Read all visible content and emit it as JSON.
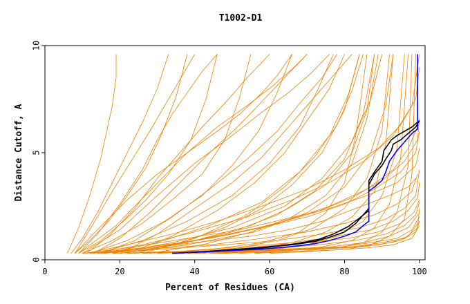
{
  "chart_data": {
    "type": "line",
    "title": "T1002-D1",
    "xlabel": "Percent of Residues (CA)",
    "ylabel": "Distance Cutoff, A",
    "xlim": [
      0,
      101.5
    ],
    "ylim": [
      0,
      10
    ],
    "x_ticks": [
      0,
      20,
      40,
      60,
      80,
      100
    ],
    "y_ticks": [
      0,
      5,
      10
    ],
    "grid": false,
    "legend": "none",
    "colors": {
      "background_models": "#f08000",
      "highlight_black": "#000000",
      "highlight_blue": "#0000ff",
      "frame": "#000000"
    },
    "background_series": [
      {
        "x": [
          6,
          9,
          12,
          15,
          17,
          18,
          19,
          19
        ],
        "y": [
          0.3,
          1.5,
          3,
          4.8,
          6.4,
          7.2,
          8.5,
          9.6
        ]
      },
      {
        "x": [
          7,
          10,
          14,
          18,
          22,
          26,
          30,
          33
        ],
        "y": [
          0.3,
          1,
          2.2,
          3.6,
          5,
          6.4,
          8,
          9.6
        ]
      },
      {
        "x": [
          8,
          12,
          17,
          22,
          27,
          31,
          35,
          38
        ],
        "y": [
          0.3,
          0.9,
          1.8,
          3,
          4.3,
          5.8,
          7.6,
          9.6
        ]
      },
      {
        "x": [
          9,
          15,
          21,
          27,
          33,
          39,
          43,
          46
        ],
        "y": [
          0.3,
          0.9,
          1.8,
          2.8,
          4,
          5.6,
          7.5,
          9.6
        ]
      },
      {
        "x": [
          10,
          18,
          26,
          34,
          42,
          48,
          52,
          55
        ],
        "y": [
          0.3,
          0.9,
          1.7,
          2.8,
          4,
          5.6,
          7.6,
          9.6
        ]
      },
      {
        "x": [
          12,
          22,
          32,
          42,
          50,
          57,
          62,
          66
        ],
        "y": [
          0.3,
          0.9,
          1.8,
          3,
          4.4,
          6,
          7.8,
          9.6
        ]
      },
      {
        "x": [
          14,
          26,
          38,
          50,
          60,
          68,
          73,
          77
        ],
        "y": [
          0.3,
          0.9,
          1.8,
          3,
          4.5,
          6.2,
          8,
          9.6
        ]
      },
      {
        "x": [
          16,
          30,
          44,
          58,
          68,
          76,
          81,
          84
        ],
        "y": [
          0.3,
          0.8,
          1.6,
          2.7,
          4.1,
          5.8,
          7.7,
          9.6
        ]
      },
      {
        "x": [
          18,
          34,
          50,
          64,
          74,
          82,
          87,
          90
        ],
        "y": [
          0.3,
          0.8,
          1.5,
          2.5,
          3.8,
          5.5,
          7.5,
          9.6
        ]
      },
      {
        "x": [
          20,
          38,
          56,
          70,
          80,
          87,
          91,
          93
        ],
        "y": [
          0.3,
          0.7,
          1.3,
          2.2,
          3.4,
          5,
          7.2,
          9.6
        ]
      },
      {
        "x": [
          9,
          14,
          20,
          26,
          30,
          34,
          38,
          42,
          46
        ],
        "y": [
          0.3,
          1.2,
          2.6,
          4.2,
          5.6,
          6.8,
          7.8,
          8.8,
          9.6
        ]
      },
      {
        "x": [
          11,
          17,
          24,
          30,
          36,
          42,
          48,
          54,
          60
        ],
        "y": [
          0.3,
          1.1,
          2.4,
          3.8,
          5,
          6.2,
          7.3,
          8.5,
          9.6
        ]
      },
      {
        "x": [
          13,
          20,
          28,
          36,
          44,
          52,
          58,
          64,
          70
        ],
        "y": [
          0.3,
          1,
          2.2,
          3.6,
          5,
          6.3,
          7.4,
          8.5,
          9.6
        ]
      },
      {
        "x": [
          15,
          24,
          34,
          44,
          54,
          62,
          68,
          74,
          78
        ],
        "y": [
          0.3,
          0.9,
          2,
          3.3,
          4.7,
          6,
          7.3,
          8.5,
          9.6
        ]
      },
      {
        "x": [
          25,
          40,
          55,
          65,
          75,
          82,
          86,
          88
        ],
        "y": [
          0.4,
          0.9,
          1.6,
          2.4,
          3.5,
          5,
          7,
          9.6
        ]
      },
      {
        "x": [
          8,
          14,
          22,
          30,
          38,
          46,
          52,
          58,
          62,
          66
        ],
        "y": [
          0.3,
          1.4,
          2.8,
          4,
          5,
          6,
          6.8,
          7.8,
          8.6,
          9.6
        ]
      },
      {
        "x": [
          20,
          35,
          50,
          62,
          72,
          80,
          85,
          88
        ],
        "y": [
          0.3,
          0.7,
          1.3,
          2.1,
          3.2,
          4.7,
          6.8,
          9.6
        ]
      },
      {
        "x": [
          30,
          45,
          58,
          68,
          75,
          80,
          83,
          86
        ],
        "y": [
          0.3,
          0.5,
          0.8,
          1.3,
          2.2,
          3.6,
          5.8,
          9.6
        ]
      },
      {
        "x": [
          10,
          25,
          40,
          55,
          65,
          74,
          80,
          86,
          92,
          97,
          99
        ],
        "y": [
          0.3,
          0.5,
          0.8,
          1.1,
          1.4,
          1.8,
          2.2,
          2.6,
          3,
          3.4,
          3.8
        ]
      },
      {
        "x": [
          12,
          28,
          44,
          58,
          70,
          80,
          88,
          94,
          98,
          99.5
        ],
        "y": [
          0.3,
          0.5,
          0.7,
          1,
          1.3,
          1.7,
          2.1,
          2.6,
          3.2,
          4
        ]
      },
      {
        "x": [
          15,
          32,
          48,
          62,
          74,
          84,
          91,
          96,
          99,
          100
        ],
        "y": [
          0.3,
          0.5,
          0.7,
          0.9,
          1.2,
          1.5,
          1.9,
          2.4,
          3,
          4.2
        ]
      },
      {
        "x": [
          18,
          36,
          52,
          66,
          78,
          87,
          93,
          97,
          99.5,
          100
        ],
        "y": [
          0.3,
          0.4,
          0.6,
          0.8,
          1.1,
          1.4,
          1.8,
          2.3,
          2.9,
          3.6
        ]
      },
      {
        "x": [
          22,
          40,
          56,
          70,
          81,
          89,
          95,
          98.5,
          100
        ],
        "y": [
          0.3,
          0.4,
          0.6,
          0.8,
          1,
          1.3,
          1.7,
          2.2,
          2.8
        ]
      },
      {
        "x": [
          26,
          44,
          60,
          73,
          83,
          91,
          96,
          99,
          100
        ],
        "y": [
          0.3,
          0.4,
          0.5,
          0.7,
          0.9,
          1.2,
          1.6,
          2.1,
          2.7
        ]
      },
      {
        "x": [
          30,
          48,
          64,
          76,
          85,
          92,
          97,
          100
        ],
        "y": [
          0.3,
          0.4,
          0.5,
          0.6,
          0.8,
          1.1,
          1.5,
          2.2
        ]
      },
      {
        "x": [
          34,
          52,
          67,
          79,
          87,
          94,
          98,
          100
        ],
        "y": [
          0.3,
          0.4,
          0.5,
          0.6,
          0.8,
          1,
          1.4,
          2
        ]
      },
      {
        "x": [
          38,
          56,
          70,
          81,
          89,
          95,
          99,
          100
        ],
        "y": [
          0.3,
          0.4,
          0.5,
          0.6,
          0.7,
          0.9,
          1.3,
          1.8
        ]
      },
      {
        "x": [
          10,
          24,
          38,
          52,
          64,
          76,
          86,
          94,
          99,
          100
        ],
        "y": [
          0.3,
          0.6,
          1,
          1.4,
          1.9,
          2.4,
          3,
          3.6,
          4.4,
          5.2
        ]
      },
      {
        "x": [
          12,
          28,
          44,
          58,
          70,
          80,
          88,
          95,
          99,
          100
        ],
        "y": [
          0.3,
          0.6,
          1,
          1.5,
          2,
          2.6,
          3.3,
          4.1,
          5,
          6
        ]
      },
      {
        "x": [
          14,
          30,
          46,
          60,
          72,
          82,
          90,
          96,
          99.5,
          100
        ],
        "y": [
          0.3,
          0.6,
          1.1,
          1.6,
          2.2,
          2.9,
          3.7,
          4.6,
          5.6,
          6.6
        ]
      },
      {
        "x": [
          16,
          34,
          50,
          64,
          76,
          86,
          93,
          97,
          100
        ],
        "y": [
          0.3,
          0.7,
          1.2,
          1.8,
          2.5,
          3.3,
          4.2,
          5.2,
          6.4
        ]
      },
      {
        "x": [
          11,
          22,
          34,
          46,
          58,
          70,
          80,
          89,
          95,
          99,
          100
        ],
        "y": [
          0.3,
          0.7,
          1.2,
          1.8,
          2.5,
          3.3,
          4.2,
          5.2,
          6.3,
          7.5,
          9
        ]
      },
      {
        "x": [
          13,
          26,
          40,
          54,
          66,
          77,
          86,
          93,
          98,
          100
        ],
        "y": [
          0.3,
          0.7,
          1.3,
          2,
          2.8,
          3.7,
          4.7,
          5.8,
          7.2,
          9.6
        ]
      },
      {
        "x": [
          40,
          56,
          70,
          82,
          90,
          96,
          99.5,
          100
        ],
        "y": [
          0.3,
          0.4,
          0.5,
          0.6,
          0.8,
          1,
          1.5,
          2.4
        ]
      },
      {
        "x": [
          44,
          60,
          74,
          85,
          92,
          97,
          100
        ],
        "y": [
          0.3,
          0.4,
          0.5,
          0.6,
          0.8,
          1.1,
          1.8
        ]
      },
      {
        "x": [
          46,
          62,
          76,
          86,
          93,
          98,
          100
        ],
        "y": [
          0.3,
          0.35,
          0.45,
          0.55,
          0.7,
          1,
          1.6
        ]
      },
      {
        "x": [
          9,
          19,
          29,
          38,
          46,
          54,
          60,
          66,
          70
        ],
        "y": [
          0.3,
          1.6,
          3.4,
          5,
          6.2,
          7.2,
          8,
          8.9,
          9.6
        ]
      },
      {
        "x": [
          10,
          20,
          30,
          40,
          50,
          58,
          65,
          71,
          76
        ],
        "y": [
          0.3,
          1.4,
          3,
          4.5,
          5.8,
          6.9,
          7.8,
          8.7,
          9.6
        ]
      },
      {
        "x": [
          24,
          36,
          48,
          58,
          66,
          74,
          80,
          84
        ],
        "y": [
          0.3,
          0.8,
          1.5,
          2.4,
          3.5,
          5,
          7,
          9.6
        ]
      },
      {
        "x": [
          28,
          42,
          55,
          66,
          75,
          82,
          86,
          89
        ],
        "y": [
          0.3,
          0.7,
          1.3,
          2,
          3,
          4.5,
          6.6,
          9.6
        ]
      },
      {
        "x": [
          36,
          50,
          62,
          72,
          80,
          86,
          90,
          92
        ],
        "y": [
          0.3,
          0.5,
          0.9,
          1.5,
          2.4,
          3.8,
          6,
          9.6
        ]
      },
      {
        "x": [
          42,
          55,
          66,
          75,
          82,
          88,
          91,
          93
        ],
        "y": [
          0.3,
          0.5,
          0.8,
          1.3,
          2,
          3.2,
          5.4,
          9.6
        ]
      },
      {
        "x": [
          8,
          13,
          18,
          23,
          28,
          32,
          36,
          40
        ],
        "y": [
          0.3,
          1.7,
          3.2,
          4.6,
          6,
          7.2,
          8.4,
          9.6
        ]
      },
      {
        "x": [
          48,
          60,
          70,
          78,
          85,
          90,
          94,
          96
        ],
        "y": [
          0.3,
          0.45,
          0.7,
          1.1,
          1.8,
          3,
          5.2,
          9.6
        ]
      },
      {
        "x": [
          52,
          64,
          74,
          82,
          88,
          92,
          95,
          97
        ],
        "y": [
          0.3,
          0.4,
          0.6,
          0.9,
          1.5,
          2.6,
          4.8,
          9.6
        ]
      },
      {
        "x": [
          56,
          68,
          78,
          85,
          90,
          94,
          97,
          98
        ],
        "y": [
          0.3,
          0.4,
          0.55,
          0.8,
          1.3,
          2.2,
          4.4,
          9.6
        ]
      },
      {
        "x": [
          60,
          72,
          81,
          87,
          92,
          96,
          98,
          99
        ],
        "y": [
          0.3,
          0.4,
          0.5,
          0.7,
          1.1,
          1.9,
          4,
          9.6
        ]
      },
      {
        "x": [
          20,
          30,
          40,
          50,
          58,
          64,
          70,
          76,
          82
        ],
        "y": [
          0.3,
          1.2,
          2.4,
          3.6,
          4.8,
          6,
          7.2,
          8.4,
          9.6
        ]
      },
      {
        "x": [
          22,
          34,
          46,
          56,
          64,
          70,
          76,
          80
        ],
        "y": [
          0.3,
          1.1,
          2.3,
          3.6,
          5,
          6.5,
          8,
          9.6
        ]
      },
      {
        "x": [
          26,
          40,
          54,
          64,
          72,
          78,
          82,
          85
        ],
        "y": [
          0.3,
          1,
          2.1,
          3.4,
          4.8,
          6.3,
          7.9,
          9.6
        ]
      }
    ],
    "highlight_series": [
      {
        "color": "black",
        "x": [
          34,
          44,
          56,
          66,
          72,
          76,
          80,
          83,
          85,
          86.5,
          86.5,
          88,
          90,
          90.5,
          92.5,
          94,
          96,
          98,
          100
        ],
        "y": [
          0.3,
          0.4,
          0.55,
          0.7,
          0.85,
          1.05,
          1.3,
          1.7,
          2.1,
          2.4,
          3.7,
          4.1,
          4.6,
          5.1,
          5.6,
          5.8,
          6,
          6.2,
          6.5
        ]
      },
      {
        "color": "black",
        "x": [
          34,
          46,
          58,
          67,
          73,
          77,
          81,
          84,
          86.5,
          86.5,
          88,
          90,
          91,
          92.5,
          93,
          95,
          97,
          99,
          100
        ],
        "y": [
          0.3,
          0.4,
          0.55,
          0.75,
          0.95,
          1.2,
          1.55,
          1.95,
          2.3,
          3.5,
          4,
          4.4,
          4.7,
          5.1,
          5.4,
          5.6,
          5.9,
          6.2,
          6.5
        ]
      },
      {
        "color": "blue",
        "x": [
          34,
          46,
          58,
          66,
          72,
          76,
          80,
          83,
          85,
          86.5,
          86.5,
          88,
          90,
          91,
          92,
          94,
          96,
          98,
          99.5,
          99.5
        ],
        "y": [
          0.3,
          0.4,
          0.5,
          0.62,
          0.75,
          0.9,
          1.1,
          1.3,
          1.6,
          1.8,
          3.2,
          3.4,
          3.7,
          4.1,
          4.6,
          5.1,
          5.5,
          5.9,
          6.1,
          9.6
        ]
      }
    ]
  }
}
